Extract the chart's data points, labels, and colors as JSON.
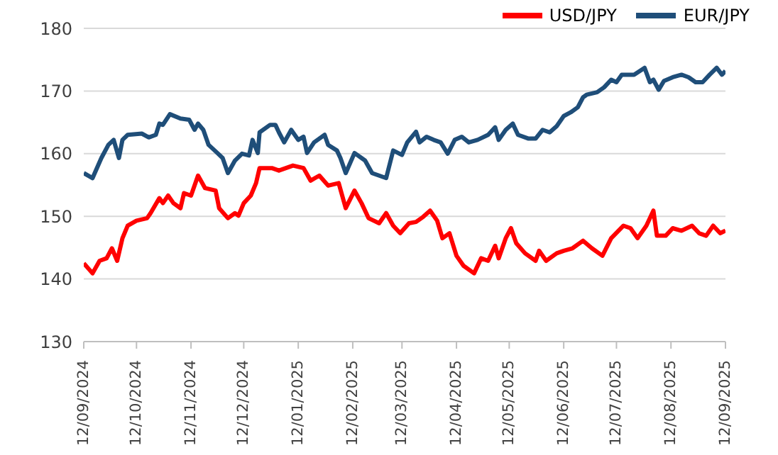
{
  "chart_data": {
    "type": "line",
    "series": [
      {
        "name": "USD/JPY",
        "color": "#ff0000",
        "x": [
          "2024-09-12",
          "2024-09-17",
          "2024-09-21",
          "2024-09-25",
          "2024-09-28",
          "2024-10-01",
          "2024-10-04",
          "2024-10-07",
          "2024-10-12",
          "2024-10-18",
          "2024-10-20",
          "2024-10-25",
          "2024-10-27",
          "2024-10-30",
          "2024-11-02",
          "2024-11-06",
          "2024-11-08",
          "2024-11-12",
          "2024-11-16",
          "2024-11-20",
          "2024-11-26",
          "2024-11-28",
          "2024-12-03",
          "2024-12-07",
          "2024-12-09",
          "2024-12-12",
          "2024-12-16",
          "2024-12-19",
          "2024-12-21",
          "2024-12-28",
          "2025-01-01",
          "2025-01-09",
          "2025-01-15",
          "2025-01-19",
          "2025-01-24",
          "2025-01-29",
          "2025-02-04",
          "2025-02-08",
          "2025-02-13",
          "2025-02-17",
          "2025-02-21",
          "2025-02-27",
          "2025-03-03",
          "2025-03-07",
          "2025-03-11",
          "2025-03-16",
          "2025-03-20",
          "2025-03-24",
          "2025-03-28",
          "2025-04-01",
          "2025-04-04",
          "2025-04-08",
          "2025-04-12",
          "2025-04-16",
          "2025-04-22",
          "2025-04-26",
          "2025-04-30",
          "2025-05-04",
          "2025-05-06",
          "2025-05-10",
          "2025-05-13",
          "2025-05-16",
          "2025-05-21",
          "2025-05-27",
          "2025-05-29",
          "2025-06-02",
          "2025-06-08",
          "2025-06-12",
          "2025-06-17",
          "2025-06-23",
          "2025-06-28",
          "2025-07-04",
          "2025-07-09",
          "2025-07-16",
          "2025-07-20",
          "2025-07-24",
          "2025-07-29",
          "2025-08-02",
          "2025-08-04",
          "2025-08-09",
          "2025-08-13",
          "2025-08-18",
          "2025-08-24",
          "2025-08-28",
          "2025-09-01",
          "2025-09-05",
          "2025-09-09",
          "2025-09-12"
        ],
        "values": [
          142.5,
          140.9,
          142.9,
          143.3,
          144.9,
          142.9,
          146.5,
          148.5,
          149.3,
          149.7,
          150.5,
          152.9,
          152.1,
          153.3,
          152.1,
          151.3,
          153.7,
          153.3,
          156.5,
          154.5,
          154.1,
          151.3,
          149.7,
          150.5,
          150.1,
          152.1,
          153.3,
          155.3,
          157.7,
          157.7,
          157.3,
          158.1,
          157.7,
          155.7,
          156.5,
          154.9,
          155.3,
          151.3,
          154.1,
          152.1,
          149.7,
          148.9,
          150.5,
          148.5,
          147.3,
          148.9,
          149.1,
          149.9,
          150.9,
          149.3,
          146.5,
          147.3,
          143.7,
          142.1,
          140.9,
          143.3,
          142.9,
          145.3,
          143.3,
          146.5,
          148.1,
          145.7,
          144.1,
          142.9,
          144.5,
          142.9,
          144.1,
          144.5,
          144.9,
          146.1,
          144.9,
          143.7,
          146.5,
          148.5,
          148.1,
          146.5,
          148.5,
          150.9,
          146.9,
          146.9,
          148.1,
          147.7,
          148.5,
          147.3,
          146.9,
          148.5,
          147.3,
          147.7
        ]
      },
      {
        "name": "EUR/JPY",
        "color": "#1f4e79",
        "x": [
          "2024-09-12",
          "2024-09-17",
          "2024-09-22",
          "2024-09-26",
          "2024-09-29",
          "2024-10-02",
          "2024-10-04",
          "2024-10-07",
          "2024-10-15",
          "2024-10-19",
          "2024-10-23",
          "2024-10-25",
          "2024-10-27",
          "2024-10-31",
          "2024-11-06",
          "2024-11-11",
          "2024-11-14",
          "2024-11-16",
          "2024-11-19",
          "2024-11-22",
          "2024-11-27",
          "2024-11-30",
          "2024-12-03",
          "2024-12-07",
          "2024-12-11",
          "2024-12-15",
          "2024-12-17",
          "2024-12-20",
          "2024-12-21",
          "2024-12-27",
          "2024-12-30",
          "2025-01-01",
          "2025-01-04",
          "2025-01-08",
          "2025-01-12",
          "2025-01-15",
          "2025-01-17",
          "2025-01-21",
          "2025-01-27",
          "2025-01-29",
          "2025-02-03",
          "2025-02-05",
          "2025-02-08",
          "2025-02-13",
          "2025-02-19",
          "2025-02-23",
          "2025-02-27",
          "2025-03-03",
          "2025-03-07",
          "2025-03-12",
          "2025-03-15",
          "2025-03-20",
          "2025-03-22",
          "2025-03-26",
          "2025-03-30",
          "2025-04-03",
          "2025-04-07",
          "2025-04-11",
          "2025-04-15",
          "2025-04-19",
          "2025-04-24",
          "2025-04-30",
          "2025-05-04",
          "2025-05-06",
          "2025-05-10",
          "2025-05-14",
          "2025-05-17",
          "2025-05-23",
          "2025-05-27",
          "2025-05-31",
          "2025-06-04",
          "2025-06-08",
          "2025-06-12",
          "2025-06-16",
          "2025-06-20",
          "2025-06-23",
          "2025-06-25",
          "2025-07-01",
          "2025-07-05",
          "2025-07-09",
          "2025-07-12",
          "2025-07-15",
          "2025-07-22",
          "2025-07-28",
          "2025-07-31",
          "2025-08-02",
          "2025-08-05",
          "2025-08-08",
          "2025-08-13",
          "2025-08-18",
          "2025-08-22",
          "2025-08-26",
          "2025-08-30",
          "2025-09-03",
          "2025-09-07",
          "2025-09-10",
          "2025-09-12"
        ],
        "values": [
          156.9,
          156.1,
          159.3,
          161.4,
          162.2,
          159.3,
          162.2,
          163,
          163.2,
          162.6,
          163,
          164.8,
          164.6,
          166.3,
          165.6,
          165.4,
          163.8,
          164.8,
          163.8,
          161.4,
          160.1,
          159.3,
          156.9,
          158.9,
          160,
          159.7,
          162.2,
          160.1,
          163.4,
          164.6,
          164.6,
          163.4,
          161.8,
          163.8,
          162.2,
          162.7,
          160.1,
          161.8,
          163,
          161.4,
          160.5,
          159.3,
          156.9,
          160.1,
          158.9,
          156.9,
          156.5,
          156.1,
          160.5,
          159.8,
          161.8,
          163.5,
          161.8,
          162.7,
          162.2,
          161.8,
          160,
          162.2,
          162.7,
          161.8,
          162.2,
          163,
          164.2,
          162.2,
          163.8,
          164.8,
          163,
          162.4,
          162.4,
          163.8,
          163.4,
          164.4,
          166,
          166.6,
          167.4,
          169,
          169.4,
          169.8,
          170.6,
          171.8,
          171.4,
          172.6,
          172.6,
          173.7,
          171.4,
          171.8,
          170.2,
          171.6,
          172.2,
          172.6,
          172.2,
          171.4,
          171.4,
          172.6,
          173.7,
          172.6,
          173.2
        ]
      }
    ],
    "xlim": [
      "2024-09-12",
      "2025-09-12"
    ],
    "xticks": [
      {
        "value": "2024-09-12",
        "label": "12/09/2024"
      },
      {
        "value": "2024-10-12",
        "label": "12/10/2024"
      },
      {
        "value": "2024-11-12",
        "label": "12/11/2024"
      },
      {
        "value": "2024-12-12",
        "label": "12/12/2024"
      },
      {
        "value": "2025-01-12",
        "label": "12/01/2025"
      },
      {
        "value": "2025-02-12",
        "label": "12/02/2025"
      },
      {
        "value": "2025-03-12",
        "label": "12/03/2025"
      },
      {
        "value": "2025-04-12",
        "label": "12/04/2025"
      },
      {
        "value": "2025-05-12",
        "label": "12/05/2025"
      },
      {
        "value": "2025-06-12",
        "label": "12/06/2025"
      },
      {
        "value": "2025-07-12",
        "label": "12/07/2025"
      },
      {
        "value": "2025-08-12",
        "label": "12/08/2025"
      },
      {
        "value": "2025-09-12",
        "label": "12/09/2025"
      }
    ],
    "ylim": [
      130,
      180
    ],
    "yticks": [
      130,
      140,
      150,
      160,
      170,
      180
    ],
    "grid": "y",
    "legend": "top right",
    "marker": "none",
    "line_style": "solid"
  }
}
